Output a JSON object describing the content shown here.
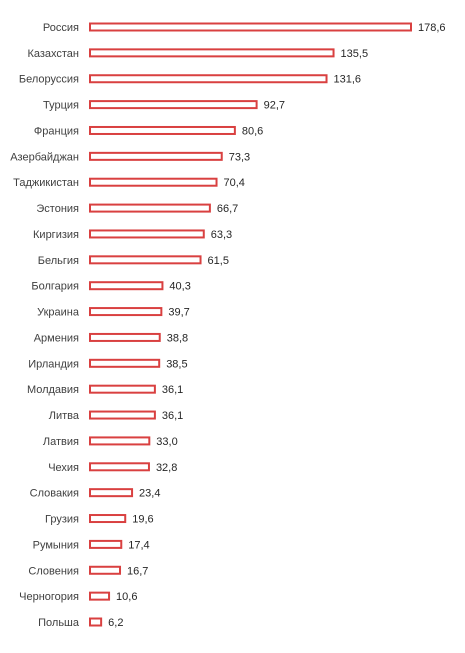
{
  "chart_data": {
    "type": "bar",
    "orientation": "horizontal",
    "title": "",
    "xlabel": "",
    "ylabel": "",
    "grid": false,
    "legend": "none",
    "categories": [
      "Россия",
      "Казахстан",
      "Белоруссия",
      "Турция",
      "Франция",
      "Азербайджан",
      "Таджикистан",
      "Эстония",
      "Киргизия",
      "Бельгия",
      "Болгария",
      "Украина",
      "Армения",
      "Ирландия",
      "Молдавия",
      "Литва",
      "Латвия",
      "Чехия",
      "Словакия",
      "Грузия",
      "Румыния",
      "Словения",
      "Черногория",
      "Польша"
    ],
    "values": [
      178.6,
      135.5,
      131.6,
      92.7,
      80.6,
      73.3,
      70.4,
      66.7,
      63.3,
      61.5,
      40.3,
      39.7,
      38.8,
      38.5,
      36.1,
      36.1,
      33.0,
      32.8,
      23.4,
      19.6,
      17.4,
      16.7,
      10.6,
      6.2
    ],
    "value_labels": [
      "178,6",
      "135,5",
      "131,6",
      "92,7",
      "80,6",
      "73,3",
      "70,4",
      "66,7",
      "63,3",
      "61,5",
      "40,3",
      "39,7",
      "38,8",
      "38,5",
      "36,1",
      "36,1",
      "33,0",
      "32,8",
      "23,4",
      "19,6",
      "17,4",
      "16,7",
      "10,6",
      "6,2"
    ],
    "xlim": [
      0,
      178.6
    ],
    "colors": {
      "bar_fill": "#ffffff",
      "bar_stroke": "#d94040",
      "label_text": "#404040",
      "value_text": "#262626"
    }
  }
}
